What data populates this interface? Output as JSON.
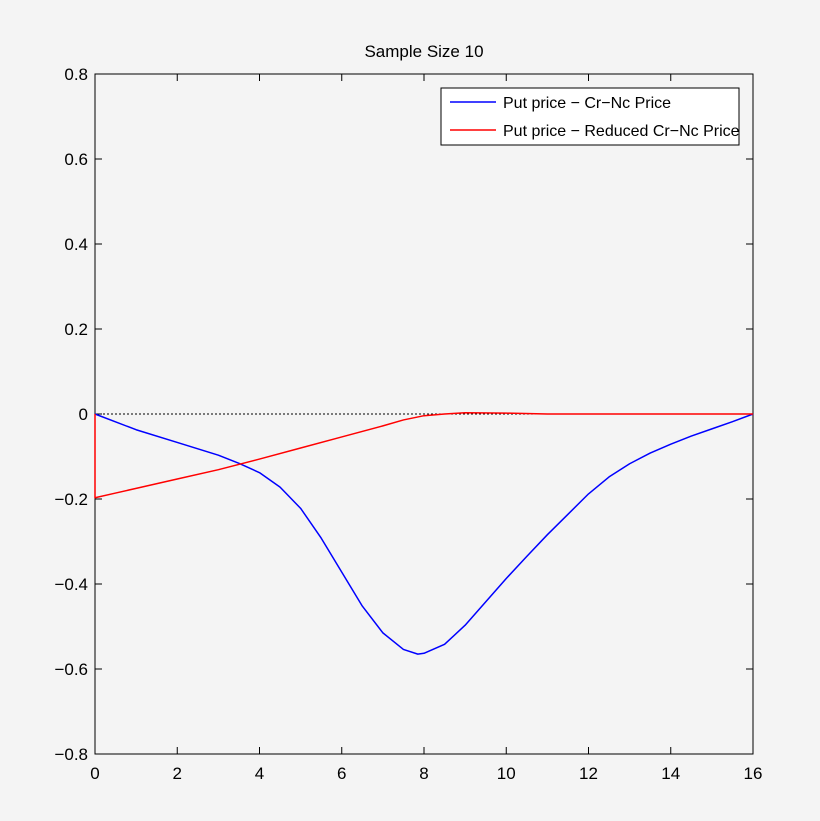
{
  "chart_data": {
    "type": "line",
    "title": "Sample Size 10",
    "xlabel": "",
    "ylabel": "",
    "xlim": [
      0,
      16
    ],
    "ylim": [
      -0.8,
      0.8
    ],
    "xticks": [
      0,
      2,
      4,
      6,
      8,
      10,
      12,
      14,
      16
    ],
    "xtick_labels": [
      "0",
      "2",
      "4",
      "6",
      "8",
      "10",
      "12",
      "14",
      "16"
    ],
    "yticks": [
      0.8,
      0.6,
      0.4,
      0.2,
      0,
      -0.2,
      -0.4,
      -0.6,
      -0.8
    ],
    "ytick_labels": [
      "0.8",
      "0.6",
      "0.4",
      "0.2",
      "0",
      "−0.2",
      "−0.4",
      "−0.6",
      "−0.8"
    ],
    "grid": false,
    "legend_position": "top-right",
    "reference_line": {
      "y": 0,
      "style": "dotted",
      "color": "#000000"
    },
    "series": [
      {
        "name": "Put price − Cr−Nc Price",
        "color": "#0000ff",
        "x": [
          0,
          1,
          2,
          3,
          3.5,
          4,
          4.5,
          5,
          5.5,
          6,
          6.5,
          7,
          7.5,
          7.85,
          8,
          8.5,
          9,
          9.5,
          10,
          10.5,
          11,
          11.5,
          12,
          12.5,
          13,
          13.5,
          14,
          14.5,
          15,
          15.5,
          16
        ],
        "y": [
          0,
          -0.037,
          -0.067,
          -0.097,
          -0.116,
          -0.138,
          -0.172,
          -0.222,
          -0.292,
          -0.372,
          -0.452,
          -0.515,
          -0.554,
          -0.565,
          -0.563,
          -0.542,
          -0.497,
          -0.442,
          -0.387,
          -0.335,
          -0.284,
          -0.236,
          -0.188,
          -0.148,
          -0.117,
          -0.092,
          -0.071,
          -0.052,
          -0.035,
          -0.018,
          0
        ]
      },
      {
        "name": "Put price − Reduced Cr−Nc Price",
        "color": "#ff0000",
        "x": [
          0,
          0,
          0.5,
          1,
          2,
          3,
          4,
          5,
          6,
          7,
          7.5,
          8,
          8.5,
          9,
          10,
          11,
          12,
          13,
          14,
          15,
          16
        ],
        "y": [
          0,
          -0.197,
          -0.186,
          -0.175,
          -0.153,
          -0.131,
          -0.106,
          -0.08,
          -0.054,
          -0.028,
          -0.014,
          -0.004,
          0,
          0.003,
          0.002,
          0,
          0,
          0,
          0,
          0,
          0
        ]
      }
    ]
  }
}
